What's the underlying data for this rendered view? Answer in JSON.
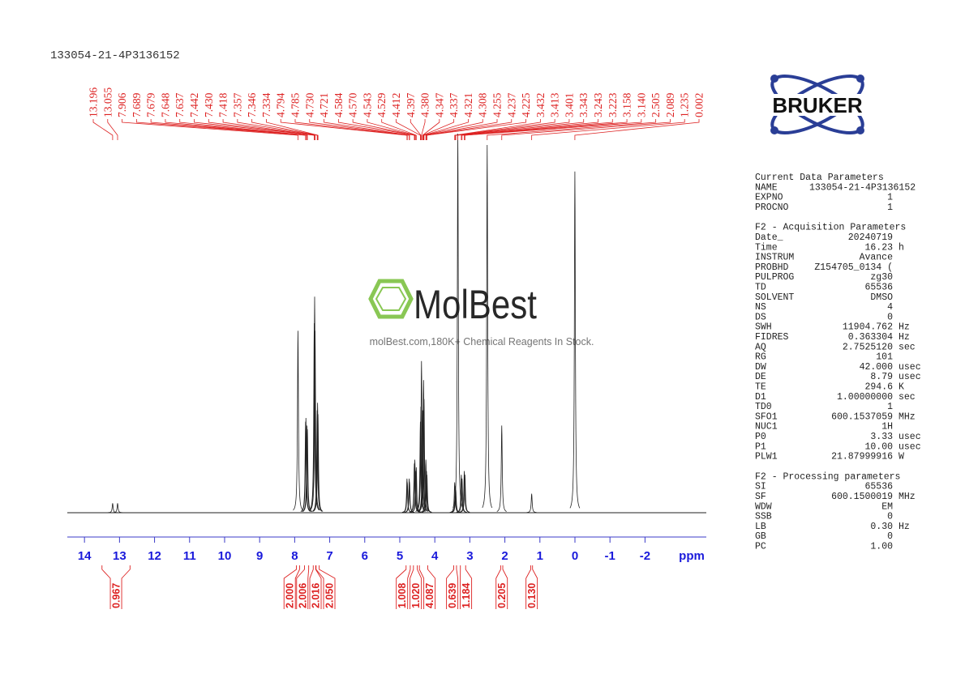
{
  "sample_id": "133054-21-4P3136152",
  "watermark": {
    "name": "MolBest",
    "tagline": "molBest.com,180K+ Chemical Reagents In Stock."
  },
  "logo": "BRUKER",
  "chart_data": {
    "type": "spectrum",
    "x_label": "ppm",
    "xlim": [
      14.49,
      -3.75
    ],
    "xticks": [
      14,
      13,
      12,
      11,
      10,
      9,
      8,
      7,
      6,
      5,
      4,
      3,
      2,
      1,
      0,
      -1,
      -2
    ],
    "ylim": [
      0,
      100
    ],
    "peaks": [
      {
        "value": 13.196,
        "label": "13.196",
        "height": 2.5
      },
      {
        "value": 13.055,
        "label": "13.055",
        "height": 2.5
      },
      {
        "value": 7.906,
        "label": "7.906",
        "height": 48
      },
      {
        "value": 7.689,
        "label": "7.689",
        "height": 24
      },
      {
        "value": 7.679,
        "label": "7.679",
        "height": 25
      },
      {
        "value": 7.648,
        "label": "7.648",
        "height": 23
      },
      {
        "value": 7.637,
        "label": "7.637",
        "height": 22
      },
      {
        "value": 7.442,
        "label": "7.442",
        "height": 50
      },
      {
        "value": 7.43,
        "label": "7.430",
        "height": 57
      },
      {
        "value": 7.418,
        "label": "7.418",
        "height": 48
      },
      {
        "value": 7.357,
        "label": "7.357",
        "height": 27
      },
      {
        "value": 7.346,
        "label": "7.346",
        "height": 29
      },
      {
        "value": 7.334,
        "label": "7.334",
        "height": 26
      },
      {
        "value": 4.794,
        "label": "4.794",
        "height": 9
      },
      {
        "value": 4.785,
        "label": "4.785",
        "height": 8
      },
      {
        "value": 4.73,
        "label": "4.730",
        "height": 9
      },
      {
        "value": 4.721,
        "label": "4.721",
        "height": 8
      },
      {
        "value": 4.584,
        "label": "4.584",
        "height": 13
      },
      {
        "value": 4.57,
        "label": "4.570",
        "height": 14
      },
      {
        "value": 4.543,
        "label": "4.543",
        "height": 11
      },
      {
        "value": 4.529,
        "label": "4.529",
        "height": 12
      },
      {
        "value": 4.412,
        "label": "4.412",
        "height": 24
      },
      {
        "value": 4.397,
        "label": "4.397",
        "height": 28
      },
      {
        "value": 4.38,
        "label": "4.380",
        "height": 40
      },
      {
        "value": 4.347,
        "label": "4.347",
        "height": 27
      },
      {
        "value": 4.337,
        "label": "4.337",
        "height": 25
      },
      {
        "value": 4.321,
        "label": "4.321",
        "height": 35
      },
      {
        "value": 4.308,
        "label": "4.308",
        "height": 30
      },
      {
        "value": 4.255,
        "label": "4.255",
        "height": 14
      },
      {
        "value": 4.237,
        "label": "4.237",
        "height": 11
      },
      {
        "value": 4.225,
        "label": "4.225",
        "height": 10
      },
      {
        "value": 3.432,
        "label": "3.432",
        "height": 8
      },
      {
        "value": 3.413,
        "label": "3.413",
        "height": 7
      },
      {
        "value": 3.401,
        "label": "3.401",
        "height": 6
      },
      {
        "value": 3.343,
        "label": "3.343",
        "height": 100
      },
      {
        "value": 3.243,
        "label": "3.243",
        "height": 10
      },
      {
        "value": 3.223,
        "label": "3.223",
        "height": 9
      },
      {
        "value": 3.158,
        "label": "3.158",
        "height": 11
      },
      {
        "value": 3.14,
        "label": "3.140",
        "height": 10
      },
      {
        "value": 2.505,
        "label": "2.505",
        "height": 97
      },
      {
        "value": 2.089,
        "label": "2.089",
        "height": 23
      },
      {
        "value": 1.235,
        "label": "1.235",
        "height": 5
      },
      {
        "value": 0.002,
        "label": "0.002",
        "height": 90
      }
    ],
    "integrals": [
      {
        "from": 13.5,
        "to": 12.7,
        "value": 0.967,
        "label": "0.967"
      },
      {
        "from": 7.95,
        "to": 7.86,
        "value": 2,
        "label": "2.000"
      },
      {
        "from": 7.72,
        "to": 7.6,
        "value": 2.006,
        "label": "2.006"
      },
      {
        "from": 7.47,
        "to": 7.4,
        "value": 2.016,
        "label": "2.016"
      },
      {
        "from": 7.39,
        "to": 7.3,
        "value": 2.05,
        "label": "2.050"
      },
      {
        "from": 4.82,
        "to": 4.7,
        "value": 1.008,
        "label": "1.008"
      },
      {
        "from": 4.61,
        "to": 4.5,
        "value": 1.02,
        "label": "1.020"
      },
      {
        "from": 4.44,
        "to": 4.2,
        "value": 4.087,
        "label": "4.087"
      },
      {
        "from": 3.46,
        "to": 3.38,
        "value": 0.639,
        "label": "0.639"
      },
      {
        "from": 3.27,
        "to": 3.12,
        "value": 1.184,
        "label": "1.184"
      },
      {
        "from": 2.12,
        "to": 2.06,
        "value": 0.205,
        "label": "0.205"
      },
      {
        "from": 1.26,
        "to": 1.21,
        "value": 0.13,
        "label": "0.130"
      }
    ]
  },
  "parameters": [
    {
      "title": "Current Data Parameters",
      "rows": [
        [
          "NAME",
          "133054-21-4P3136152",
          ""
        ],
        [
          "EXPNO",
          "1",
          ""
        ],
        [
          "PROCNO",
          "1",
          ""
        ]
      ]
    },
    {
      "title": "F2 - Acquisition Parameters",
      "rows": [
        [
          "Date_",
          "20240719",
          ""
        ],
        [
          "Time",
          "16.23",
          "h"
        ],
        [
          "INSTRUM",
          "Avance",
          ""
        ],
        [
          "PROBHD",
          "Z154705_0134 (",
          ""
        ],
        [
          "PULPROG",
          "zg30",
          ""
        ],
        [
          "TD",
          "65536",
          ""
        ],
        [
          "SOLVENT",
          "DMSO",
          ""
        ],
        [
          "NS",
          "4",
          ""
        ],
        [
          "DS",
          "0",
          ""
        ],
        [
          "SWH",
          "11904.762",
          "Hz"
        ],
        [
          "FIDRES",
          "0.363304",
          "Hz"
        ],
        [
          "AQ",
          "2.7525120",
          "sec"
        ],
        [
          "RG",
          "101",
          ""
        ],
        [
          "DW",
          "42.000",
          "usec"
        ],
        [
          "DE",
          "8.79",
          "usec"
        ],
        [
          "TE",
          "294.6",
          "K"
        ],
        [
          "D1",
          "1.00000000",
          "sec"
        ],
        [
          "TD0",
          "1",
          ""
        ],
        [
          "SFO1",
          "600.1537059",
          "MHz"
        ],
        [
          "NUC1",
          "1H",
          ""
        ],
        [
          "P0",
          "3.33",
          "usec"
        ],
        [
          "P1",
          "10.00",
          "usec"
        ],
        [
          "PLW1",
          "21.87999916",
          "W"
        ]
      ]
    },
    {
      "title": "F2 - Processing parameters",
      "rows": [
        [
          "SI",
          "65536",
          ""
        ],
        [
          "SF",
          "600.1500019",
          "MHz"
        ],
        [
          "WDW",
          "EM",
          ""
        ],
        [
          "SSB",
          "0",
          ""
        ],
        [
          "LB",
          "0.30",
          "Hz"
        ],
        [
          "GB",
          "0",
          ""
        ],
        [
          "PC",
          "1.00",
          ""
        ]
      ]
    }
  ]
}
